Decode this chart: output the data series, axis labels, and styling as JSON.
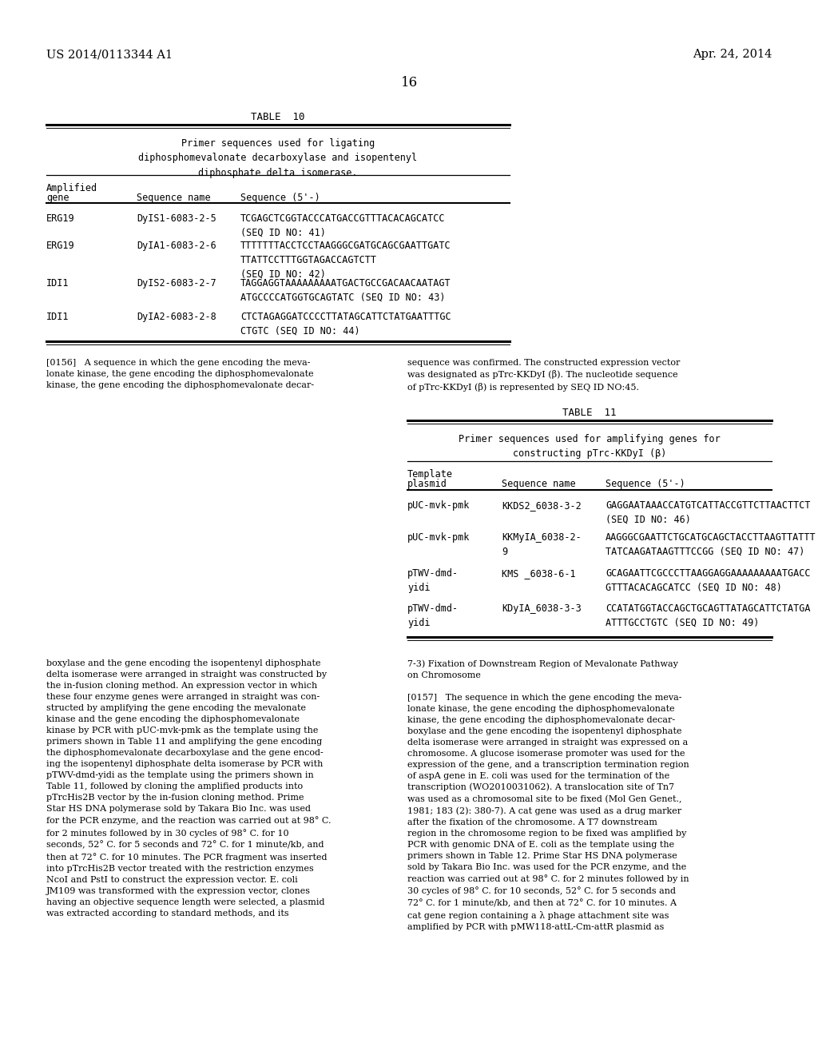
{
  "background_color": "#ffffff",
  "header_left": "US 2014/0113344 A1",
  "header_right": "Apr. 24, 2014",
  "page_number": "16",
  "table10": {
    "title": "TABLE  10",
    "header_text": "Primer sequences used for ligating\ndiphosphomevalonate decarboxylase and isopentenyl\ndiphosphate delta isomerase.",
    "rows": [
      [
        "ERG19",
        "DyIS1-6083-2-5",
        "TCGAGCTCGGTACCCATGACCGTTTACACAGCATCC\n(SEQ ID NO: 41)"
      ],
      [
        "ERG19",
        "DyIA1-6083-2-6",
        "TTTTTTTACCTCCTAAGGGCGATGCAGCGAATTGATC\nTTATTCCTTTGGTAGACCAGTCTT\n(SEQ ID NO: 42)"
      ],
      [
        "IDI1",
        "DyIS2-6083-2-7",
        "TAGGAGGTAAAAAAAAATGACTGCCGACAACAATAGT\nATGCCCCATGGTGCAGTATC (SEQ ID NO: 43)"
      ],
      [
        "IDI1",
        "DyIA2-6083-2-8",
        "CTCTAGAGGATCCCCTTATAGCATTCTATGAATTTGC\nCTGTC (SEQ ID NO: 44)"
      ]
    ]
  },
  "para156_left": "[0156]   A sequence in which the gene encoding the meva-\nlonate kinase, the gene encoding the diphosphomevalonate\nkinase, the gene encoding the diphosphomevalonate decar-",
  "para156_right": "sequence was confirmed. The constructed expression vector\nwas designated as pTrc-KKDyI (β). The nucleotide sequence\nof pTrc-KKDyI (β) is represented by SEQ ID NO:45.",
  "table11": {
    "title": "TABLE  11",
    "header_text": "Primer sequences used for amplifying genes for\nconstructing pTrc-KKDyI (β)",
    "rows": [
      [
        "pUC-mvk-pmk",
        "KKDS2_6038-3-2",
        "GAGGAATAAACCATGTCATTACCGTTCTTAACTTCT\n(SEQ ID NO: 46)"
      ],
      [
        "pUC-mvk-pmk",
        "KKMyIA_6038-2-\n9",
        "AAGGGCGAATTCTGCATGCAGCTACCTTAAGTTATTT\nTATCAAGATAAGTTTCCGG (SEQ ID NO: 47)"
      ],
      [
        "pTWV-dmd-\nyidi",
        "KMS _6038-6-1",
        "GCAGAATTCGCCCTTAAGGAGGAAAAAAAAATGACC\nGTTTACACAGCATCC (SEQ ID NO: 48)"
      ],
      [
        "pTWV-dmd-\nyidi",
        "KDyIA_6038-3-3",
        "CCATATGGTACCAGCTGCAGTTATAGCATTCTATGA\nATTTGCCTGTC (SEQ ID NO: 49)"
      ]
    ]
  },
  "para157_left": "boxylase and the gene encoding the isopentenyl diphosphate\ndelta isomerase were arranged in straight was constructed by\nthe in-fusion cloning method. An expression vector in which\nthese four enzyme genes were arranged in straight was con-\nstructed by amplifying the gene encoding the mevalonate\nkinase and the gene encoding the diphosphomevalonate\nkinase by PCR with pUC-mvk-pmk as the template using the\nprimers shown in Table 11 and amplifying the gene encoding\nthe diphosphomevalonate decarboxylase and the gene encod-\ning the isopentenyl diphosphate delta isomerase by PCR with\npTWV-dmd-yidi as the template using the primers shown in\nTable 11, followed by cloning the amplified products into\npTrcHis2B vector by the in-fusion cloning method. Prime\nStar HS DNA polymerase sold by Takara Bio Inc. was used\nfor the PCR enzyme, and the reaction was carried out at 98° C.\nfor 2 minutes followed by in 30 cycles of 98° C. for 10\nseconds, 52° C. for 5 seconds and 72° C. for 1 minute/kb, and\nthen at 72° C. for 10 minutes. The PCR fragment was inserted\ninto pTrcHis2B vector treated with the restriction enzymes\nNcoI and PstI to construct the expression vector. E. coli\nJM109 was transformed with the expression vector, clones\nhaving an objective sequence length were selected, a plasmid\nwas extracted according to standard methods, and its",
  "para157_right": "7-3) Fixation of Downstream Region of Mevalonate Pathway\non Chromosome\n\n[0157]   The sequence in which the gene encoding the meva-\nlonate kinase, the gene encoding the diphosphomevalonate\nkinase, the gene encoding the diphosphomevalonate decar-\nboxylase and the gene encoding the isopentenyl diphosphate\ndelta isomerase were arranged in straight was expressed on a\nchromosome. A glucose isomerase promoter was used for the\nexpression of the gene, and a transcription termination region\nof aspA gene in E. coli was used for the termination of the\ntranscription (WO2010031062). A translocation site of Tn7\nwas used as a chromosomal site to be fixed (Mol Gen Genet.,\n1981; 183 (2): 380-7). A cat gene was used as a drug marker\nafter the fixation of the chromosome. A T7 downstream\nregion in the chromosome region to be fixed was amplified by\nPCR with genomic DNA of E. coli as the template using the\nprimers shown in Table 12. Prime Star HS DNA polymerase\nsold by Takara Bio Inc. was used for the PCR enzyme, and the\nreaction was carried out at 98° C. for 2 minutes followed by in\n30 cycles of 98° C. for 10 seconds, 52° C. for 5 seconds and\n72° C. for 1 minute/kb, and then at 72° C. for 10 minutes. A\ncat gene region containing a λ phage attachment site was\namplified by PCR with pMW118-attL-Cm-attR plasmid as"
}
